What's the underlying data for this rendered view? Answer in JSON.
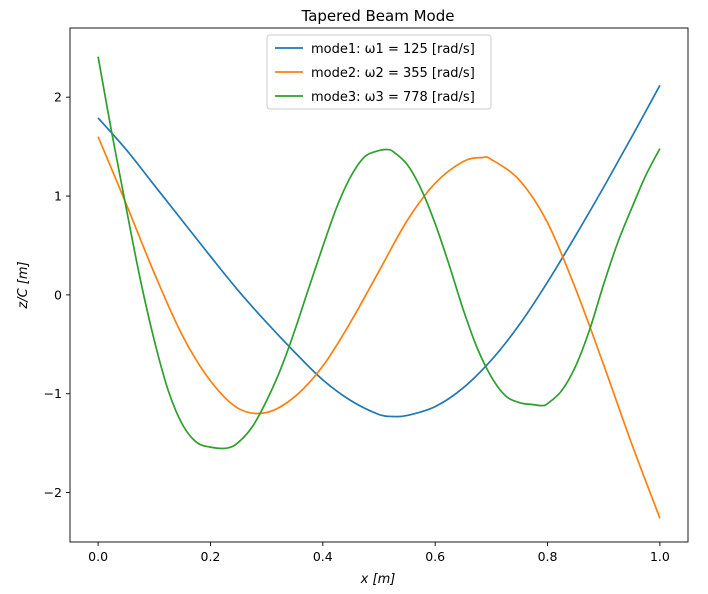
{
  "chart_data": {
    "type": "line",
    "title": "Tapered Beam Mode",
    "xlabel": "x [m]",
    "ylabel": "z/C [m]",
    "xlim": [
      -0.05,
      1.05
    ],
    "ylim": [
      -2.5,
      2.7
    ],
    "xticks": [
      0.0,
      0.2,
      0.4,
      0.6,
      0.8,
      1.0
    ],
    "xtick_labels": [
      "0.0",
      "0.2",
      "0.4",
      "0.6",
      "0.8",
      "1.0"
    ],
    "yticks": [
      -2,
      -1,
      0,
      1,
      2
    ],
    "ytick_labels": [
      "−2",
      "−1",
      "0",
      "1",
      "2"
    ],
    "grid": false,
    "legend_position": "upper center",
    "series": [
      {
        "name": "mode1: ω1 = 125 [rad/s]",
        "color": "#1f77b4",
        "x": [
          0.0,
          0.05,
          0.1,
          0.15,
          0.2,
          0.25,
          0.3,
          0.35,
          0.4,
          0.45,
          0.5,
          0.525,
          0.55,
          0.6,
          0.65,
          0.7,
          0.75,
          0.8,
          0.85,
          0.9,
          0.95,
          1.0
        ],
        "y": [
          1.79,
          1.47,
          1.11,
          0.75,
          0.39,
          0.04,
          -0.28,
          -0.58,
          -0.86,
          -1.07,
          -1.21,
          -1.23,
          -1.22,
          -1.13,
          -0.94,
          -0.66,
          -0.3,
          0.13,
          0.6,
          1.09,
          1.6,
          2.12
        ]
      },
      {
        "name": "mode2: ω2 = 355 [rad/s]",
        "color": "#ff7f0e",
        "x": [
          0.0,
          0.05,
          0.1,
          0.15,
          0.2,
          0.25,
          0.3,
          0.35,
          0.4,
          0.45,
          0.5,
          0.55,
          0.6,
          0.65,
          0.685,
          0.7,
          0.75,
          0.8,
          0.85,
          0.9,
          0.95,
          1.0
        ],
        "y": [
          1.6,
          0.92,
          0.22,
          -0.41,
          -0.87,
          -1.15,
          -1.19,
          -1.03,
          -0.72,
          -0.27,
          0.24,
          0.75,
          1.13,
          1.35,
          1.39,
          1.37,
          1.16,
          0.73,
          0.06,
          -0.71,
          -1.51,
          -2.26
        ]
      },
      {
        "name": "mode3: ω3 = 778 [rad/s]",
        "color": "#2ca02c",
        "x": [
          0.0,
          0.025,
          0.05,
          0.075,
          0.1,
          0.125,
          0.15,
          0.175,
          0.2,
          0.23,
          0.25,
          0.275,
          0.3,
          0.325,
          0.35,
          0.375,
          0.4,
          0.425,
          0.45,
          0.475,
          0.5,
          0.515,
          0.525,
          0.55,
          0.575,
          0.6,
          0.625,
          0.65,
          0.675,
          0.7,
          0.725,
          0.75,
          0.775,
          0.79,
          0.8,
          0.825,
          0.85,
          0.875,
          0.9,
          0.925,
          0.95,
          0.975,
          1.0
        ],
        "y": [
          2.41,
          1.62,
          0.88,
          0.16,
          -0.46,
          -0.97,
          -1.31,
          -1.49,
          -1.54,
          -1.55,
          -1.49,
          -1.33,
          -1.07,
          -0.75,
          -0.36,
          0.07,
          0.49,
          0.89,
          1.2,
          1.4,
          1.46,
          1.47,
          1.45,
          1.32,
          1.07,
          0.72,
          0.3,
          -0.15,
          -0.54,
          -0.83,
          -1.02,
          -1.09,
          -1.11,
          -1.12,
          -1.1,
          -0.97,
          -0.72,
          -0.35,
          0.11,
          0.53,
          0.88,
          1.21,
          1.48
        ]
      }
    ]
  }
}
